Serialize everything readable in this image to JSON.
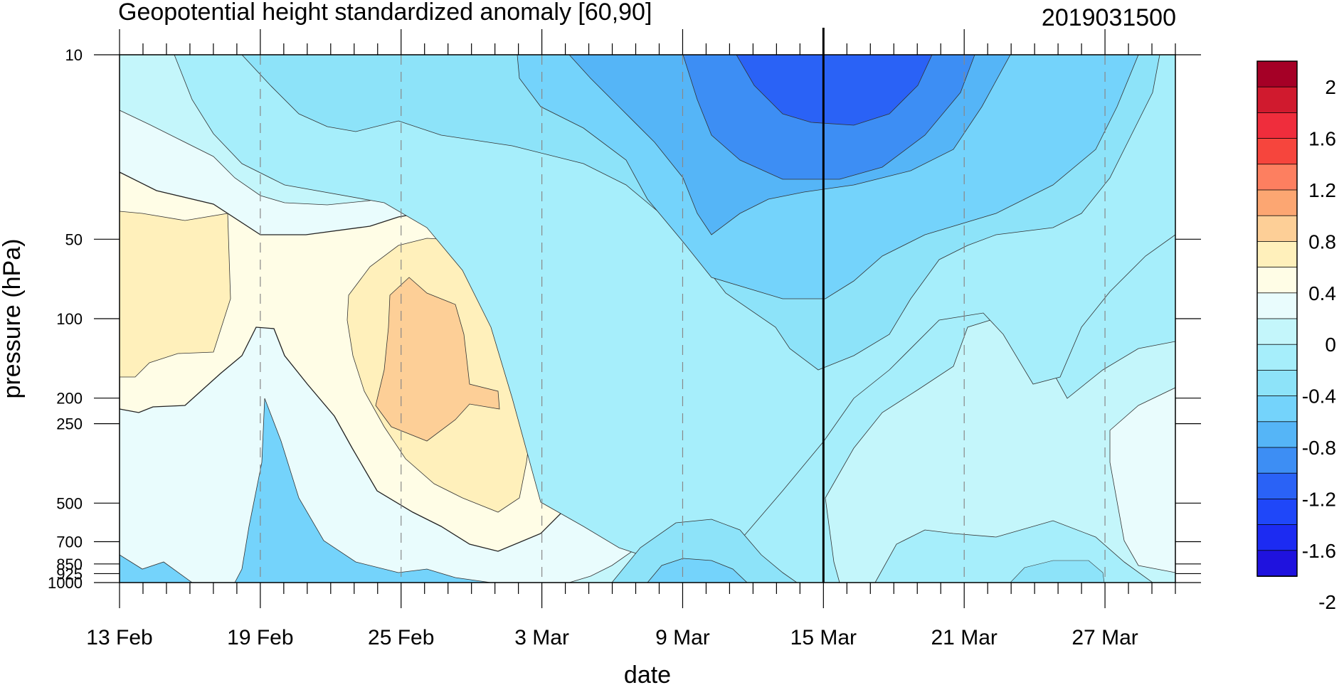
{
  "chart_data": {
    "type": "heatmap",
    "subtype": "filled-contour",
    "title": "Geopotential height standardized anomaly [60,90]",
    "date_label": "2019031500",
    "xlabel": "date",
    "ylabel": "pressure (hPa)",
    "x_tick_labels": [
      "13 Feb",
      "19 Feb",
      "25 Feb",
      "3 Mar",
      "9 Mar",
      "15 Mar",
      "21 Mar",
      "27 Mar"
    ],
    "x_tick_days": [
      0,
      6,
      12,
      18,
      24,
      30,
      36,
      42
    ],
    "x_range_days": [
      0,
      45
    ],
    "y_tick_labels": [
      "10",
      "50",
      "100",
      "200",
      "250",
      "500",
      "700",
      "850",
      "925",
      "1000"
    ],
    "y_tick_values": [
      10,
      50,
      100,
      200,
      250,
      500,
      700,
      850,
      925,
      1000
    ],
    "y_range": [
      10,
      1000
    ],
    "y_scale": "log-pressure (inverted)",
    "vertical_line_day": 30,
    "vertical_dashed_grid": true,
    "colorbar_labels": [
      "2",
      "1.6",
      "1.2",
      "0.8",
      "0.4",
      "0",
      "-0.4",
      "-0.8",
      "-1.2",
      "-1.6",
      "-2"
    ],
    "colorbar_levels": [
      2.4,
      2.0,
      1.8,
      1.6,
      1.4,
      1.2,
      1.0,
      0.8,
      0.6,
      0.4,
      0.2,
      0,
      -0.2,
      -0.4,
      -0.6,
      -0.8,
      -1.0,
      -1.2,
      -1.4,
      -1.6,
      -1.8,
      -2.0,
      -2.4
    ],
    "colorbar_colors": [
      "#a50026",
      "#d01a2e",
      "#ef2d3c",
      "#f6453d",
      "#fd7f60",
      "#fca672",
      "#fdcf97",
      "#fff0bb",
      "#fffde6",
      "#e9fcfd",
      "#c4f6fb",
      "#a6eefb",
      "#8de3f9",
      "#74d3fb",
      "#55b5f7",
      "#3d8ef4",
      "#2a62f6",
      "#1f47f9",
      "#1c2bf2",
      "#1f12de"
    ],
    "colors": {
      "neg_04": "#c4f6fb",
      "neg_06": "#a6eefb",
      "neg_08": "#8de3f9",
      "neg_10": "#74d3fb",
      "neg_12": "#55b5f7",
      "neg_14": "#3d8ef4",
      "neg_16": "#2a62f6",
      "neg_02": "#e9fcfd",
      "pos_02": "#fffde6",
      "pos_04": "#fff0bb",
      "pos_06": "#fdcf97"
    }
  }
}
